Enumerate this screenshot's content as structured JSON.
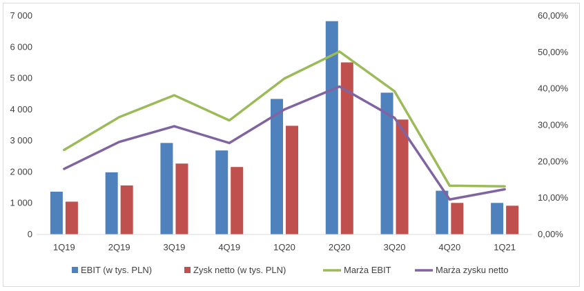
{
  "chart_data": {
    "type": "bar",
    "categories": [
      "1Q19",
      "2Q19",
      "3Q19",
      "4Q19",
      "1Q20",
      "2Q20",
      "3Q20",
      "4Q20",
      "1Q21"
    ],
    "series": [
      {
        "name": "EBIT (w tys. PLN)",
        "kind": "bar",
        "axis": "left",
        "color": "#4f81bd",
        "values": [
          1370,
          1990,
          2930,
          2690,
          4340,
          6830,
          4540,
          1400,
          1010
        ]
      },
      {
        "name": "Zysk netto (w tys. PLN)",
        "kind": "bar",
        "axis": "left",
        "color": "#c0504d",
        "values": [
          1050,
          1570,
          2270,
          2160,
          3480,
          5510,
          3680,
          1010,
          920
        ]
      },
      {
        "name": "Marża EBIT",
        "kind": "line",
        "axis": "right",
        "color": "#9bbb59",
        "values": [
          23.2,
          32.2,
          38.2,
          31.3,
          42.8,
          50.2,
          39.3,
          13.4,
          13.2
        ]
      },
      {
        "name": "Marża zysku netto",
        "kind": "line",
        "axis": "right",
        "color": "#8064a2",
        "values": [
          18.0,
          25.4,
          29.7,
          25.1,
          34.3,
          40.6,
          32.0,
          9.6,
          12.4
        ]
      }
    ],
    "left_ylim": [
      0,
      7000
    ],
    "left_ticks": [
      "0",
      "1 000",
      "2 000",
      "3 000",
      "4 000",
      "5 000",
      "6 000",
      "7 000"
    ],
    "right_ylim": [
      0,
      60
    ],
    "right_ticks": [
      "0,00%",
      "10,00%",
      "20,00%",
      "30,00%",
      "40,00%",
      "50,00%",
      "60,00%"
    ],
    "grid": false,
    "legend_position": "bottom"
  }
}
